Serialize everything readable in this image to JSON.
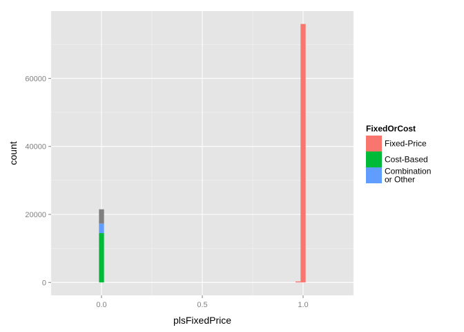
{
  "chart_data": {
    "type": "bar",
    "title": "",
    "xlabel": "plsFixedPrice",
    "ylabel": "count",
    "xlim": [
      -0.25,
      1.25
    ],
    "ylim": [
      -3800,
      79800
    ],
    "grid": true,
    "x_ticks": [
      {
        "value": 0.0,
        "label": "0.0"
      },
      {
        "value": 0.5,
        "label": "0.5"
      },
      {
        "value": 1.0,
        "label": "1.0"
      }
    ],
    "y_ticks": [
      {
        "value": 0,
        "label": "0"
      },
      {
        "value": 20000,
        "label": "20000"
      },
      {
        "value": 40000,
        "label": "40000"
      },
      {
        "value": 60000,
        "label": "60000"
      }
    ],
    "legend": {
      "title": "FixedOrCost",
      "position": "right",
      "entries": [
        {
          "label_lines": [
            "Fixed-Price"
          ],
          "color": "#F8766D"
        },
        {
          "label_lines": [
            "Cost-Based"
          ],
          "color": "#00BA38"
        },
        {
          "label_lines": [
            "Combination",
            "or Other"
          ],
          "color": "#619CFF"
        }
      ]
    },
    "bin_width": 0.025,
    "bars": [
      {
        "x": 0.0,
        "segments": [
          {
            "group": "Cost-Based",
            "value": 14500,
            "color": "#00BA38"
          },
          {
            "group": "Combination or Other",
            "value": 2800,
            "color": "#619CFF"
          },
          {
            "group": "NA",
            "value": 4200,
            "color": "#7F7F7F"
          }
        ]
      },
      {
        "x": 0.975,
        "segments": [
          {
            "group": "Fixed-Price",
            "value": 300,
            "color": "#F8766D"
          }
        ]
      },
      {
        "x": 1.0,
        "segments": [
          {
            "group": "Fixed-Price",
            "value": 76000,
            "color": "#F8766D"
          }
        ]
      }
    ]
  }
}
